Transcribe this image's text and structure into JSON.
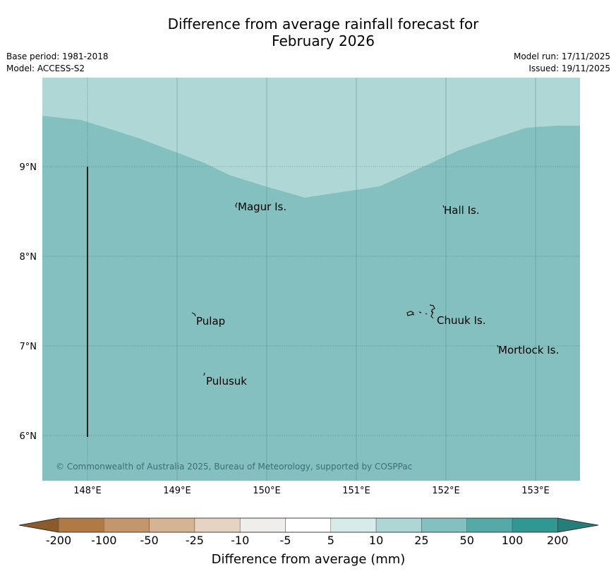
{
  "header": {
    "title_line1": "Difference from average rainfall forecast for",
    "title_line2": "February 2026",
    "base_period": "Base period: 1981-2018",
    "model": "Model: ACCESS-S2",
    "model_run": "Model run: 17/11/2025",
    "issued": "Issued: 19/11/2025"
  },
  "map": {
    "lat_labels": [
      "9°N",
      "8°N",
      "7°N",
      "6°N"
    ],
    "lon_labels": [
      "148°E",
      "149°E",
      "150°E",
      "151°E",
      "152°E",
      "153°E"
    ],
    "places": [
      "Magur Is.",
      "Hall Is.",
      "Pulap",
      "Chuuk Is.",
      "Mortlock Is.",
      "Pulusuk"
    ],
    "copyright": "© Commonwealth of Australia 2025, Bureau of Meteorology, supported by COSPPac",
    "colors": {
      "background": "#84c0bf",
      "upper_band": "#afd7d6",
      "grid": "#5e9898"
    }
  },
  "legend": {
    "title": "Difference from average (mm)",
    "labels": [
      "-200",
      "-100",
      "-50",
      "-25",
      "-10",
      "-5",
      "5",
      "10",
      "25",
      "50",
      "100",
      "200"
    ],
    "colors": [
      "#8c5a2b",
      "#b07a45",
      "#c4966c",
      "#d5b494",
      "#e6d3c1",
      "#f0eeeb",
      "#ffffff",
      "#d6ebea",
      "#add6d5",
      "#84c0bf",
      "#55a9a6",
      "#319792",
      "#247e7a"
    ]
  }
}
